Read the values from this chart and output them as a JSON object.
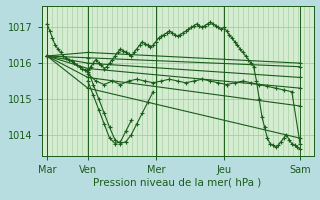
{
  "bg_color": "#b8dde0",
  "plot_bg_color": "#d4ecd0",
  "grid_color_v": "#a0c8a0",
  "grid_color_h": "#a0c8a0",
  "line_color": "#1a5c1a",
  "xlabel": "Pression niveau de la mer( hPa )",
  "xlim": [
    0,
    100
  ],
  "ylim": [
    1013.4,
    1017.6
  ],
  "yticks": [
    1014,
    1015,
    1016,
    1017
  ],
  "ytick_fontsize": 7,
  "xtick_labels": [
    "Mar",
    "Ven",
    "Mer",
    "Jeu",
    "Sam"
  ],
  "xtick_positions": [
    2,
    17,
    42,
    67,
    95
  ],
  "num_vgrid": 55,
  "lines": [
    {
      "x": [
        2,
        3,
        4,
        5,
        6,
        7,
        8,
        9,
        10,
        11,
        12,
        13,
        14,
        15,
        16,
        17,
        18,
        19,
        20,
        21,
        22,
        23,
        24,
        25,
        26,
        27,
        28,
        29,
        30,
        31,
        32,
        33,
        34,
        35,
        36,
        37,
        38,
        39,
        40,
        41,
        42,
        43,
        44,
        45,
        46,
        47,
        48,
        49,
        50,
        51,
        52,
        53,
        54,
        55,
        56,
        57,
        58,
        59,
        60,
        61,
        62,
        63,
        64,
        65,
        66,
        67,
        68,
        69,
        70,
        71,
        72,
        73,
        74,
        75,
        76,
        77,
        78,
        79,
        80,
        81,
        82,
        83,
        84,
        85,
        86,
        87,
        88,
        89,
        90,
        91,
        92,
        93,
        94,
        95
      ],
      "y": [
        1017.1,
        1016.9,
        1016.7,
        1016.5,
        1016.4,
        1016.3,
        1016.2,
        1016.15,
        1016.1,
        1016.05,
        1016.0,
        1015.95,
        1015.9,
        1015.85,
        1015.8,
        1015.75,
        1015.9,
        1016.0,
        1016.1,
        1016.0,
        1015.95,
        1015.85,
        1015.9,
        1016.0,
        1016.1,
        1016.2,
        1016.3,
        1016.4,
        1016.35,
        1016.3,
        1016.25,
        1016.2,
        1016.3,
        1016.4,
        1016.5,
        1016.6,
        1016.55,
        1016.5,
        1016.45,
        1016.5,
        1016.6,
        1016.7,
        1016.75,
        1016.8,
        1016.85,
        1016.9,
        1016.85,
        1016.8,
        1016.75,
        1016.8,
        1016.85,
        1016.9,
        1016.95,
        1017.0,
        1017.05,
        1017.1,
        1017.05,
        1017.0,
        1017.05,
        1017.1,
        1017.15,
        1017.1,
        1017.05,
        1017.0,
        1016.95,
        1017.0,
        1016.9,
        1016.8,
        1016.7,
        1016.6,
        1016.5,
        1016.4,
        1016.3,
        1016.2,
        1016.1,
        1016.0,
        1015.9,
        1015.5,
        1015.0,
        1014.5,
        1014.2,
        1013.9,
        1013.75,
        1013.7,
        1013.65,
        1013.7,
        1013.8,
        1013.9,
        1014.0,
        1013.85,
        1013.75,
        1013.7,
        1013.65,
        1013.6
      ]
    },
    {
      "x": [
        2,
        17,
        95
      ],
      "y": [
        1016.2,
        1016.15,
        1015.9
      ]
    },
    {
      "x": [
        2,
        17,
        95
      ],
      "y": [
        1016.2,
        1016.0,
        1015.6
      ]
    },
    {
      "x": [
        2,
        17,
        95
      ],
      "y": [
        1016.2,
        1015.85,
        1015.3
      ]
    },
    {
      "x": [
        2,
        17,
        95
      ],
      "y": [
        1016.2,
        1015.6,
        1014.8
      ]
    },
    {
      "x": [
        2,
        17,
        95
      ],
      "y": [
        1016.2,
        1015.3,
        1013.9
      ]
    },
    {
      "x": [
        2,
        17,
        95
      ],
      "y": [
        1016.2,
        1016.3,
        1016.0
      ]
    },
    {
      "x": [
        17,
        19,
        21,
        23,
        25,
        27,
        29,
        31,
        33,
        35,
        37,
        39,
        41
      ],
      "y": [
        1015.8,
        1015.4,
        1015.0,
        1014.6,
        1014.2,
        1013.85,
        1013.75,
        1013.8,
        1014.0,
        1014.3,
        1014.6,
        1014.9,
        1015.2
      ]
    },
    {
      "x": [
        17,
        19,
        21,
        23,
        25,
        27,
        29,
        31,
        33
      ],
      "y": [
        1015.5,
        1015.1,
        1014.7,
        1014.3,
        1013.9,
        1013.75,
        1013.8,
        1014.1,
        1014.4
      ]
    },
    {
      "x": [
        17,
        20,
        23,
        26,
        29,
        32,
        35,
        38,
        41,
        44,
        47,
        50,
        53,
        56,
        59,
        62,
        65,
        68,
        71,
        74,
        77,
        80,
        83,
        86,
        89,
        92,
        95
      ],
      "y": [
        1015.7,
        1015.5,
        1015.4,
        1015.5,
        1015.4,
        1015.5,
        1015.55,
        1015.5,
        1015.45,
        1015.5,
        1015.55,
        1015.5,
        1015.45,
        1015.5,
        1015.55,
        1015.5,
        1015.45,
        1015.4,
        1015.45,
        1015.5,
        1015.45,
        1015.4,
        1015.35,
        1015.3,
        1015.25,
        1015.2,
        1013.75
      ]
    }
  ]
}
